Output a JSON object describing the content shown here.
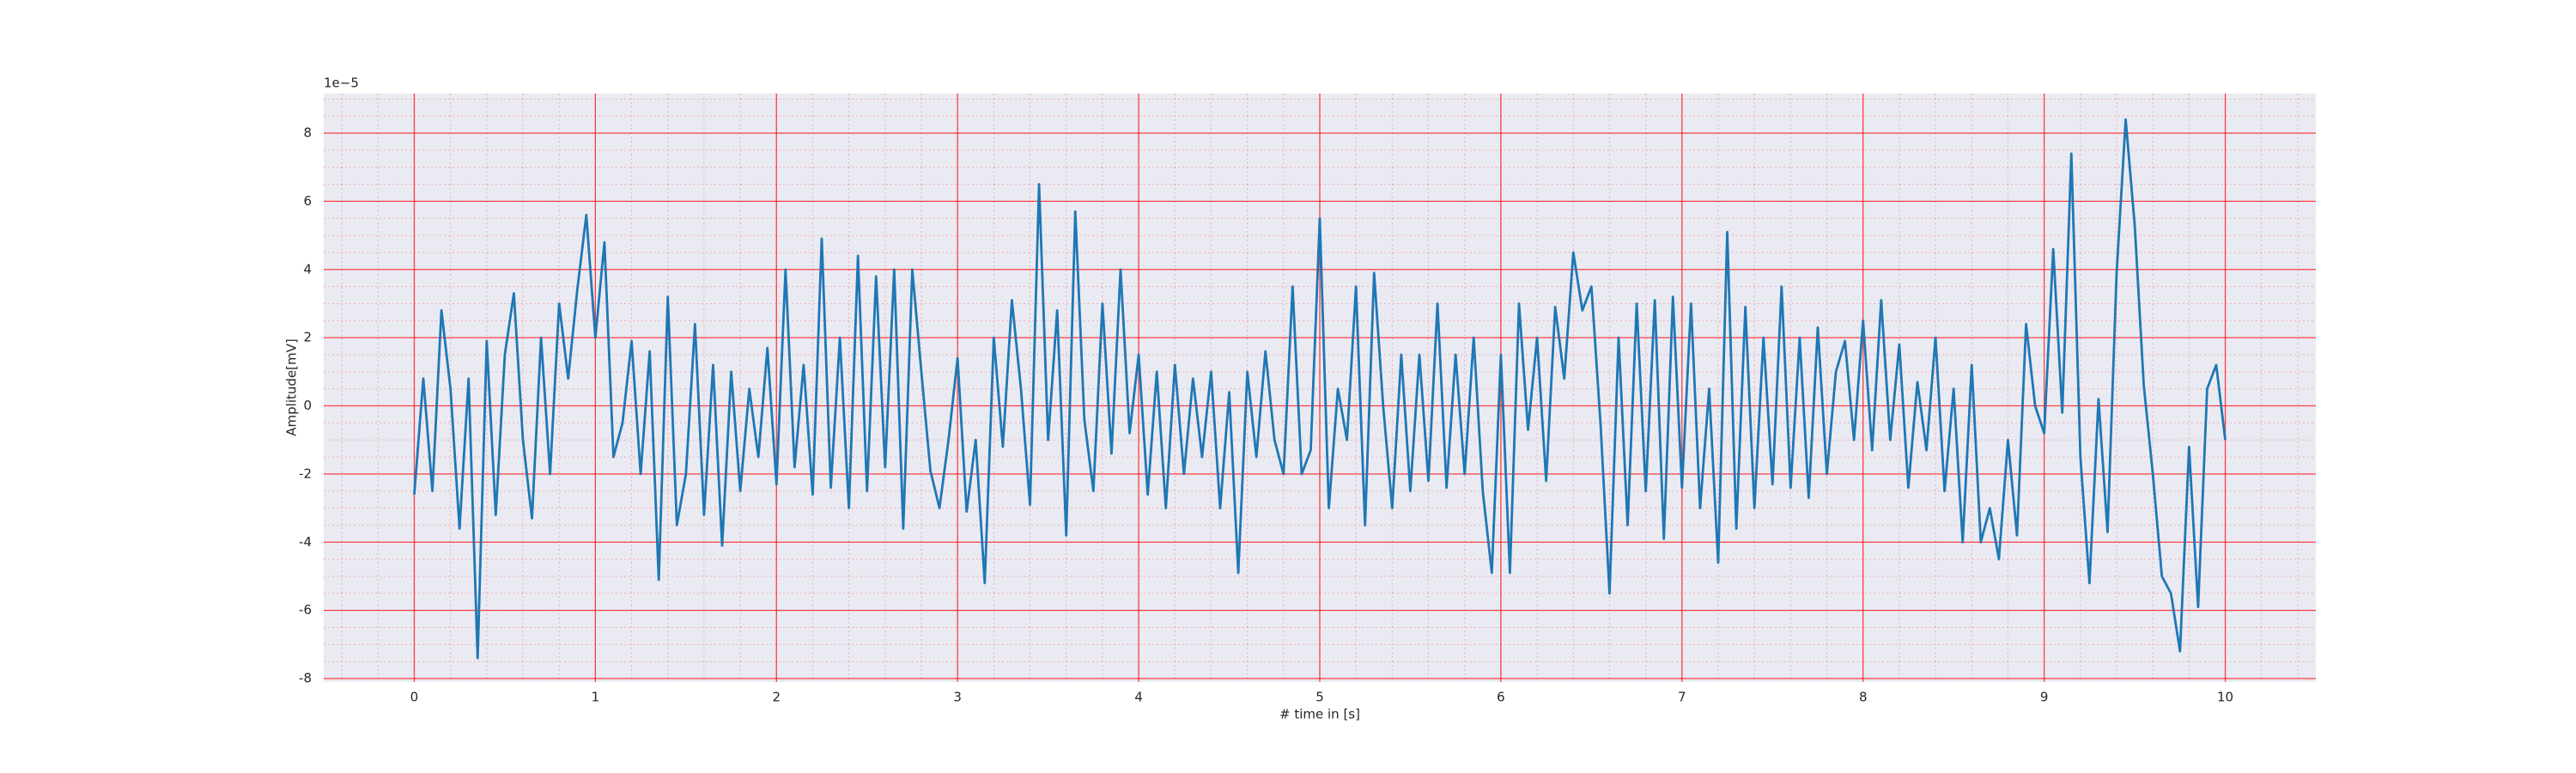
{
  "chart_data": {
    "type": "line",
    "x_label": "# time in [s]",
    "y_label": "Amplitude[mV]",
    "y_offset_label": "1e−5",
    "color": "#1f77b4",
    "grid": true,
    "grid_color": "#ff0000",
    "minor_grid": true,
    "background": "#eaeaf2",
    "xlim": [
      -0.5,
      10.5
    ],
    "xticks": [
      0,
      1,
      2,
      3,
      4,
      5,
      6,
      7,
      8,
      9,
      10
    ],
    "ylim": [
      -8.1,
      9.16
    ],
    "yticks": [
      -8,
      -6,
      -4,
      -2,
      0,
      2,
      4,
      6,
      8
    ],
    "x": [
      0.0,
      0.05,
      0.1,
      0.15,
      0.2,
      0.25,
      0.3,
      0.35,
      0.4,
      0.45,
      0.5,
      0.55,
      0.6,
      0.65,
      0.7,
      0.75,
      0.8,
      0.85,
      0.9,
      0.95,
      1.0,
      1.05,
      1.1,
      1.15,
      1.2,
      1.25,
      1.3,
      1.35,
      1.4,
      1.45,
      1.5,
      1.55,
      1.6,
      1.65,
      1.7,
      1.75,
      1.8,
      1.85,
      1.9,
      1.95,
      2.0,
      2.05,
      2.1,
      2.15,
      2.2,
      2.25,
      2.3,
      2.35,
      2.4,
      2.45,
      2.5,
      2.55,
      2.6,
      2.65,
      2.7,
      2.75,
      2.8,
      2.85,
      2.9,
      2.95,
      3.0,
      3.05,
      3.1,
      3.15,
      3.2,
      3.25,
      3.3,
      3.35,
      3.4,
      3.45,
      3.5,
      3.55,
      3.6,
      3.65,
      3.7,
      3.75,
      3.8,
      3.85,
      3.9,
      3.95,
      4.0,
      4.05,
      4.1,
      4.15,
      4.2,
      4.25,
      4.3,
      4.35,
      4.4,
      4.45,
      4.5,
      4.55,
      4.6,
      4.65,
      4.7,
      4.75,
      4.8,
      4.85,
      4.9,
      4.95,
      5.0,
      5.05,
      5.1,
      5.15,
      5.2,
      5.25,
      5.3,
      5.35,
      5.4,
      5.45,
      5.5,
      5.55,
      5.6,
      5.65,
      5.7,
      5.75,
      5.8,
      5.85,
      5.9,
      5.95,
      6.0,
      6.05,
      6.1,
      6.15,
      6.2,
      6.25,
      6.3,
      6.35,
      6.4,
      6.45,
      6.5,
      6.55,
      6.6,
      6.65,
      6.7,
      6.75,
      6.8,
      6.85,
      6.9,
      6.95,
      7.0,
      7.05,
      7.1,
      7.15,
      7.2,
      7.25,
      7.3,
      7.35,
      7.4,
      7.45,
      7.5,
      7.55,
      7.6,
      7.65,
      7.7,
      7.75,
      7.8,
      7.85,
      7.9,
      7.95,
      8.0,
      8.05,
      8.1,
      8.15,
      8.2,
      8.25,
      8.3,
      8.35,
      8.4,
      8.45,
      8.5,
      8.55,
      8.6,
      8.65,
      8.7,
      8.75,
      8.8,
      8.85,
      8.9,
      8.95,
      9.0,
      9.05,
      9.1,
      9.15,
      9.2,
      9.25,
      9.3,
      9.35,
      9.4,
      9.45,
      9.5,
      9.55,
      9.6,
      9.65,
      9.7,
      9.75,
      9.8,
      9.85,
      9.9,
      9.95,
      10.0
    ],
    "values": [
      -2.6,
      0.8,
      -2.5,
      2.8,
      0.5,
      -3.6,
      0.8,
      -7.4,
      1.9,
      -3.2,
      1.5,
      3.3,
      -1.0,
      -3.3,
      2.0,
      -2.0,
      3.0,
      0.8,
      3.4,
      5.6,
      2.0,
      4.8,
      -1.5,
      -0.5,
      1.9,
      -2.0,
      1.6,
      -5.1,
      3.2,
      -3.5,
      -2.0,
      2.4,
      -3.2,
      1.2,
      -4.1,
      1.0,
      -2.5,
      0.5,
      -1.5,
      1.7,
      -2.3,
      4.0,
      -1.8,
      1.2,
      -2.6,
      4.9,
      -2.4,
      2.0,
      -3.0,
      4.4,
      -2.5,
      3.8,
      -1.8,
      4.0,
      -3.6,
      4.0,
      1.0,
      -1.9,
      -3.0,
      -1.0,
      1.4,
      -3.1,
      -1.0,
      -5.2,
      2.0,
      -1.2,
      3.1,
      0.5,
      -2.9,
      6.5,
      -1.0,
      2.8,
      -3.8,
      5.7,
      -0.4,
      -2.5,
      3.0,
      -1.4,
      4.0,
      -0.8,
      1.5,
      -2.6,
      1.0,
      -3.0,
      1.2,
      -2.0,
      0.8,
      -1.5,
      1.0,
      -3.0,
      0.4,
      -4.9,
      1.0,
      -1.5,
      1.6,
      -1.0,
      -2.0,
      3.5,
      -2.0,
      -1.3,
      5.5,
      -3.0,
      0.5,
      -1.0,
      3.5,
      -3.5,
      3.9,
      0.0,
      -3.0,
      1.5,
      -2.5,
      1.5,
      -2.2,
      3.0,
      -2.4,
      1.5,
      -2.0,
      2.0,
      -2.5,
      -4.9,
      1.5,
      -4.9,
      3.0,
      -0.7,
      2.0,
      -2.2,
      2.9,
      0.8,
      4.5,
      2.8,
      3.5,
      -0.5,
      -5.5,
      2.0,
      -3.5,
      3.0,
      -2.5,
      3.1,
      -3.9,
      3.2,
      -2.4,
      3.0,
      -3.0,
      0.5,
      -4.6,
      5.1,
      -3.6,
      2.9,
      -3.0,
      2.0,
      -2.3,
      3.5,
      -2.4,
      2.0,
      -2.7,
      2.3,
      -2.0,
      1.0,
      1.9,
      -1.0,
      2.5,
      -1.3,
      3.1,
      -1.0,
      1.8,
      -2.4,
      0.7,
      -1.3,
      2.0,
      -2.5,
      0.5,
      -4.0,
      1.2,
      -4.0,
      -3.0,
      -4.5,
      -1.0,
      -3.8,
      2.4,
      0.0,
      -0.8,
      4.6,
      -0.2,
      7.4,
      -1.5,
      -5.2,
      0.2,
      -3.7,
      3.9,
      8.4,
      5.3,
      0.6,
      -2.0,
      -5.0,
      -5.5,
      -7.2,
      -1.2,
      -5.9,
      0.5,
      1.2,
      -1.0
    ]
  }
}
